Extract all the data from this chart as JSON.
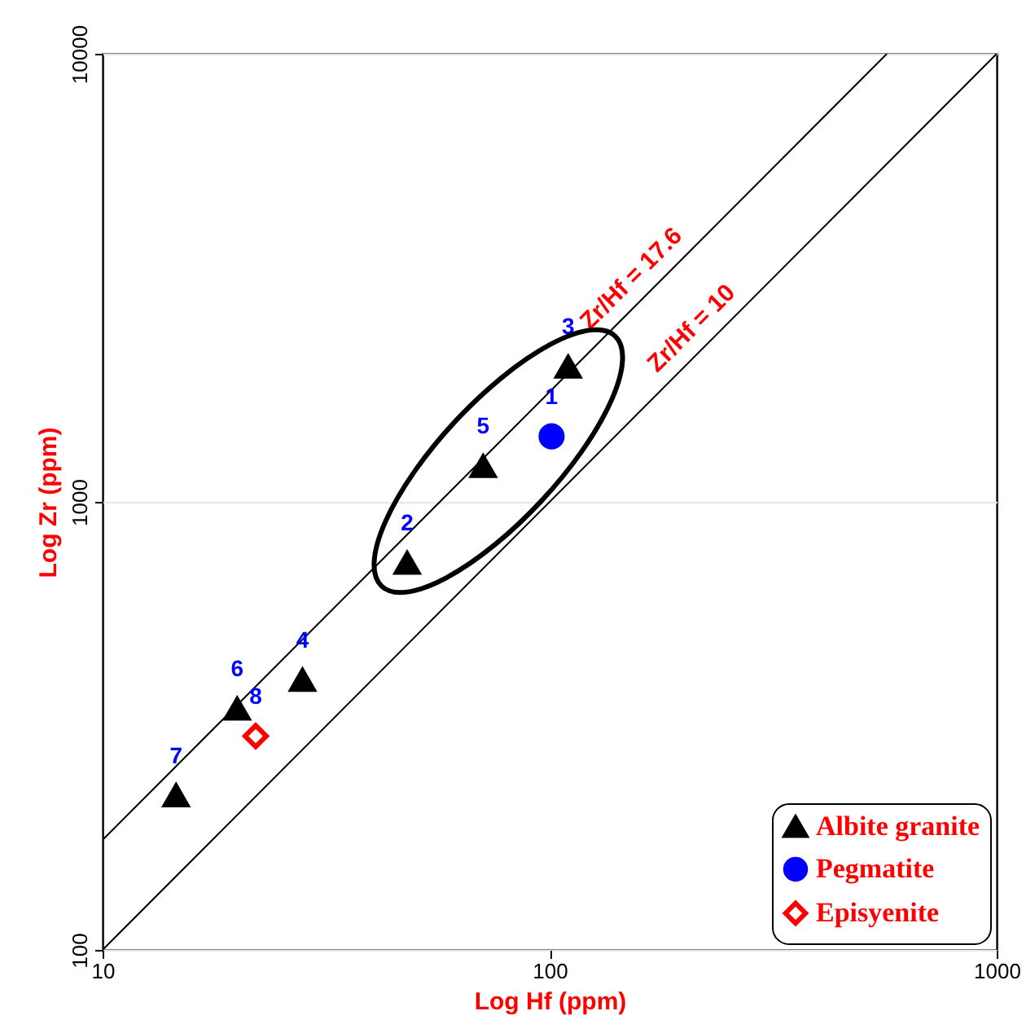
{
  "chart_data": {
    "type": "scatter",
    "xlabel": "Log Hf (ppm)",
    "ylabel": "Log Zr (ppm)",
    "log": "xy",
    "xlim": [
      10,
      1000
    ],
    "ylim": [
      100,
      10000
    ],
    "xticks": [
      10,
      100,
      1000
    ],
    "yticks": [
      100,
      1000,
      10000
    ],
    "grid": "y",
    "legend": "bottom right",
    "series": [
      {
        "type": "line",
        "color": "#000000",
        "x": [
          10,
          568
        ],
        "values": [
          176,
          10000
        ],
        "line_style": "solid"
      },
      {
        "type": "line",
        "color": "#000000",
        "x": [
          10,
          1000
        ],
        "values": [
          100,
          10000
        ],
        "line_style": "solid"
      },
      {
        "name": "Albite granite",
        "color": "#000000",
        "marker": "triangle",
        "x": [
          110,
          48,
          28,
          71,
          20,
          14.6
        ],
        "values": [
          2000,
          730,
          400,
          1200,
          345,
          221
        ]
      },
      {
        "name": "Pegmatite",
        "color": "#0000ff",
        "marker": "circle",
        "x": [
          101
        ],
        "values": [
          1400
        ]
      },
      {
        "name": "Episyenite",
        "color": "#ff0000",
        "marker": "diamond",
        "x": [
          22
        ],
        "values": [
          300
        ]
      }
    ],
    "annotations": [
      {
        "text": "1",
        "x": 101,
        "y": 1400
      },
      {
        "text": "2",
        "x": 48,
        "y": 730
      },
      {
        "text": "3",
        "x": 110,
        "y": 2000
      },
      {
        "text": "4",
        "x": 28,
        "y": 400
      },
      {
        "text": "5",
        "x": 71,
        "y": 1200
      },
      {
        "text": "6",
        "x": 20,
        "y": 345
      },
      {
        "text": "7",
        "x": 14.6,
        "y": 221
      },
      {
        "text": "8",
        "x": 22,
        "y": 300
      },
      {
        "text": "Zr/Hf = 17.6",
        "x": 165,
        "y": 2904
      },
      {
        "text": "Zr/Hf = 10",
        "x": 225,
        "y": 2250
      }
    ]
  }
}
